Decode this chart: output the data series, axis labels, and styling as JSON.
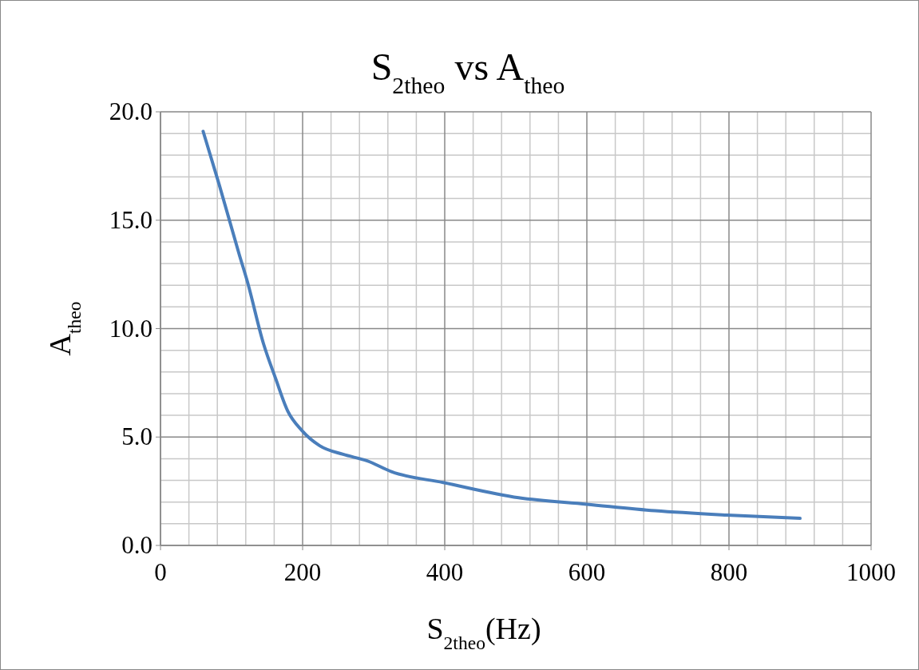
{
  "chart_data": {
    "type": "line",
    "title": "S$_{2theo}$ vs A$_{theo}$",
    "xlabel": "S$_{2theo}$(Hz)",
    "ylabel": "A$_{theo}$",
    "x": [
      60,
      83,
      111,
      122,
      145,
      162,
      179,
      199,
      224,
      257,
      291,
      325,
      398,
      504,
      600,
      696,
      797,
      900
    ],
    "series": [
      {
        "color": "#4a7ebb",
        "values": [
          19.1,
          16.6,
          13.4,
          12.2,
          9.3,
          7.7,
          6.2,
          5.3,
          4.6,
          4.2,
          3.9,
          3.4,
          2.9,
          2.2,
          1.9,
          1.6,
          1.4,
          1.25
        ]
      }
    ],
    "xlim": [
      0,
      1000
    ],
    "xticks": [
      0,
      200,
      400,
      600,
      800,
      1000
    ],
    "ylim": [
      0,
      20
    ],
    "yticks": [
      {
        "value": 0,
        "label": "0.0"
      },
      {
        "value": 5,
        "label": "5.0"
      },
      {
        "value": 10,
        "label": "10.0"
      },
      {
        "value": 15,
        "label": "15.0"
      },
      {
        "value": 20,
        "label": "20.0"
      }
    ],
    "grid": true,
    "marker": "none",
    "line_style": "solid"
  }
}
